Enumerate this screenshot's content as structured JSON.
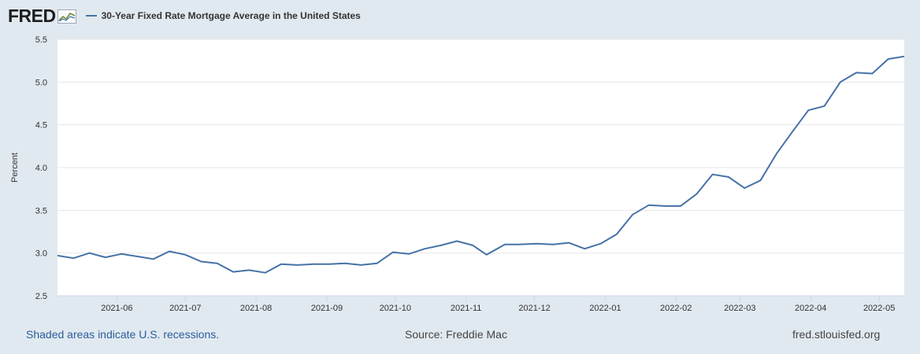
{
  "header": {
    "logo": "FRED",
    "series_label": "30-Year Fixed Rate Mortgage Average in the United States"
  },
  "footer": {
    "recessions": "Shaded areas indicate U.S. recessions.",
    "source": "Source: Freddie Mac",
    "site": "fred.stlouisfed.org"
  },
  "colors": {
    "background": "#e1e9f0",
    "plot_background": "#ffffff",
    "series": "#4572a7",
    "grid": "#e6e6e6"
  },
  "chart_data": {
    "type": "line",
    "title": "30-Year Fixed Rate Mortgage Average in the United States",
    "xlabel": "",
    "ylabel": "Percent",
    "ylim": [
      2.5,
      5.5
    ],
    "yticks": [
      2.5,
      3.0,
      3.5,
      4.0,
      4.5,
      5.0,
      5.5
    ],
    "ytick_labels": [
      "2.5",
      "3.0",
      "3.5",
      "4.0",
      "4.5",
      "5.0",
      "5.5"
    ],
    "xlim": [
      "2021-05-06",
      "2022-05-12"
    ],
    "xticks": [
      "2021-06-01",
      "2021-07-01",
      "2021-08-01",
      "2021-09-01",
      "2021-10-01",
      "2021-11-01",
      "2021-12-01",
      "2022-01-01",
      "2022-02-01",
      "2022-03-01",
      "2022-04-01",
      "2022-05-01"
    ],
    "xtick_labels": [
      "2021-06",
      "2021-07",
      "2021-08",
      "2021-09",
      "2021-10",
      "2021-11",
      "2021-12",
      "2022-01",
      "2022-02",
      "2022-03",
      "2022-04",
      "2022-05"
    ],
    "grid": true,
    "series": [
      {
        "name": "30-Year Fixed Rate Mortgage Average in the United States",
        "x": [
          "2021-05-06",
          "2021-05-13",
          "2021-05-20",
          "2021-05-27",
          "2021-06-03",
          "2021-06-10",
          "2021-06-17",
          "2021-06-24",
          "2021-07-01",
          "2021-07-08",
          "2021-07-15",
          "2021-07-22",
          "2021-07-29",
          "2021-08-05",
          "2021-08-12",
          "2021-08-19",
          "2021-08-26",
          "2021-09-02",
          "2021-09-09",
          "2021-09-16",
          "2021-09-23",
          "2021-09-30",
          "2021-10-07",
          "2021-10-14",
          "2021-10-21",
          "2021-10-28",
          "2021-11-04",
          "2021-11-10",
          "2021-11-18",
          "2021-11-24",
          "2021-12-02",
          "2021-12-09",
          "2021-12-16",
          "2021-12-23",
          "2021-12-30",
          "2022-01-06",
          "2022-01-13",
          "2022-01-20",
          "2022-01-27",
          "2022-02-03",
          "2022-02-10",
          "2022-02-17",
          "2022-02-24",
          "2022-03-03",
          "2022-03-10",
          "2022-03-17",
          "2022-03-24",
          "2022-03-31",
          "2022-04-07",
          "2022-04-14",
          "2022-04-21",
          "2022-04-28",
          "2022-05-05",
          "2022-05-12"
        ],
        "values": [
          2.97,
          2.94,
          3.0,
          2.95,
          2.99,
          2.96,
          2.93,
          3.02,
          2.98,
          2.9,
          2.88,
          2.78,
          2.8,
          2.77,
          2.87,
          2.86,
          2.87,
          2.87,
          2.88,
          2.86,
          2.88,
          3.01,
          2.99,
          3.05,
          3.09,
          3.14,
          3.09,
          2.98,
          3.1,
          3.1,
          3.11,
          3.1,
          3.12,
          3.05,
          3.11,
          3.22,
          3.45,
          3.56,
          3.55,
          3.55,
          3.69,
          3.92,
          3.89,
          3.76,
          3.85,
          4.16,
          4.42,
          4.67,
          4.72,
          5.0,
          5.11,
          5.1,
          5.27,
          5.3
        ]
      }
    ]
  }
}
